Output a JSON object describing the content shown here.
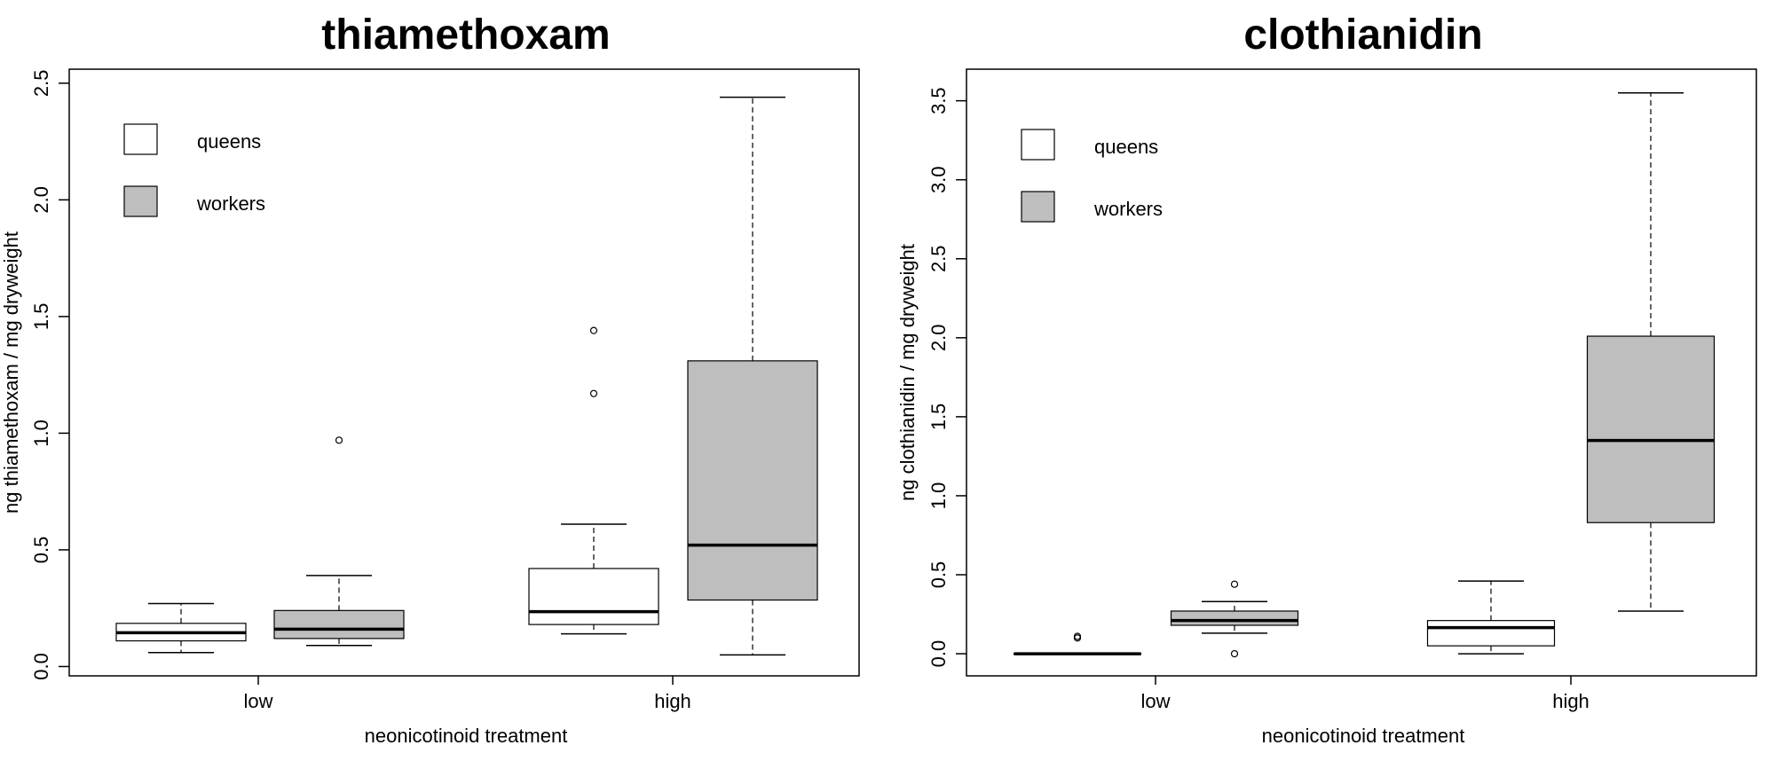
{
  "xlabel": "neonicotinoid treatment",
  "legend": {
    "queens": "queens",
    "workers": "workers"
  },
  "colors": {
    "queens": "#ffffff",
    "workers": "#bebebe",
    "stroke": "#000000"
  },
  "chart_data": [
    {
      "type": "box",
      "title": "thiamethoxam",
      "ylabel": "ng thiamethoxam / mg dryweight",
      "xlabel": "neonicotinoid treatment",
      "categories": [
        "low",
        "high"
      ],
      "ylim": [
        -0.04,
        2.56
      ],
      "yticks": [
        0.0,
        0.5,
        1.0,
        1.5,
        2.0,
        2.5
      ],
      "ytick_labels": [
        "0.0",
        "0.5",
        "1.0",
        "1.5",
        "2.0",
        "2.5"
      ],
      "legend_position": "top-left",
      "grid": false,
      "series": [
        {
          "name": "queens",
          "boxes": [
            {
              "category": "low",
              "min": 0.06,
              "q1": 0.11,
              "median": 0.145,
              "q3": 0.185,
              "max": 0.27,
              "outliers": []
            },
            {
              "category": "high",
              "min": 0.14,
              "q1": 0.18,
              "median": 0.235,
              "q3": 0.42,
              "max": 0.61,
              "outliers": [
                1.17,
                1.44
              ]
            }
          ]
        },
        {
          "name": "workers",
          "boxes": [
            {
              "category": "low",
              "min": 0.09,
              "q1": 0.12,
              "median": 0.16,
              "q3": 0.24,
              "max": 0.39,
              "outliers": [
                0.97
              ]
            },
            {
              "category": "high",
              "min": 0.05,
              "q1": 0.285,
              "median": 0.52,
              "q3": 1.31,
              "max": 2.44,
              "outliers": []
            }
          ]
        }
      ]
    },
    {
      "type": "box",
      "title": "clothianidin",
      "ylabel": "ng clothianidin / mg dryweight",
      "xlabel": "neonicotinoid treatment",
      "categories": [
        "low",
        "high"
      ],
      "ylim": [
        -0.14,
        3.7
      ],
      "yticks": [
        0.0,
        0.5,
        1.0,
        1.5,
        2.0,
        2.5,
        3.0,
        3.5
      ],
      "ytick_labels": [
        "0.0",
        "0.5",
        "1.0",
        "1.5",
        "2.0",
        "2.5",
        "3.0",
        "3.5"
      ],
      "legend_position": "top-left",
      "grid": false,
      "series": [
        {
          "name": "queens",
          "boxes": [
            {
              "category": "low",
              "min": 0.0,
              "q1": 0.0,
              "median": 0.0,
              "q3": 0.0,
              "max": 0.0,
              "outliers": [
                0.1,
                0.11
              ]
            },
            {
              "category": "high",
              "min": 0.0,
              "q1": 0.05,
              "median": 0.165,
              "q3": 0.21,
              "max": 0.46,
              "outliers": []
            }
          ]
        },
        {
          "name": "workers",
          "boxes": [
            {
              "category": "low",
              "min": 0.13,
              "q1": 0.18,
              "median": 0.21,
              "q3": 0.27,
              "max": 0.33,
              "outliers": [
                0.0,
                0.44
              ]
            },
            {
              "category": "high",
              "min": 0.27,
              "q1": 0.83,
              "median": 1.35,
              "q3": 2.01,
              "max": 3.55,
              "outliers": []
            }
          ]
        }
      ]
    }
  ]
}
